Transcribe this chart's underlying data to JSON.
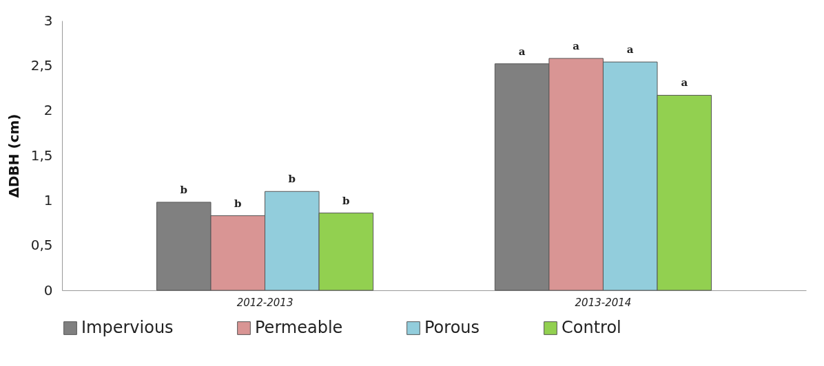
{
  "chart_data": {
    "type": "bar",
    "ylabel": "ΔDBH  (cm)",
    "categories": [
      "2012-2013",
      "2013-2014"
    ],
    "series": [
      {
        "name": "Impervious",
        "color": "#808080",
        "values": [
          0.98,
          2.52
        ],
        "value_labels": [
          "b",
          "a"
        ]
      },
      {
        "name": "Permeable",
        "color": "#d99594",
        "values": [
          0.83,
          2.58
        ],
        "value_labels": [
          "b",
          "a"
        ]
      },
      {
        "name": "Porous",
        "color": "#92cddc",
        "values": [
          1.1,
          2.54
        ],
        "value_labels": [
          "b",
          "a"
        ]
      },
      {
        "name": "Control",
        "color": "#92d050",
        "values": [
          0.86,
          2.17
        ],
        "value_labels": [
          "b",
          "a"
        ]
      }
    ],
    "ylim": [
      0,
      3
    ],
    "yticks": [
      0,
      {
        "value": 0.5,
        "label": "0,5"
      },
      1,
      {
        "value": 1.5,
        "label": "1,5"
      },
      2,
      {
        "value": 2.5,
        "label": "2,5"
      },
      3
    ],
    "grid": false,
    "legend": "bottom"
  }
}
